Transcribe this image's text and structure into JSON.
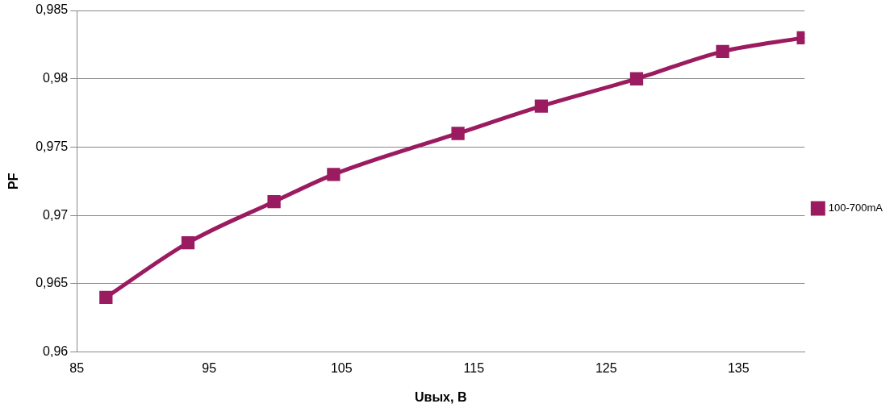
{
  "chart_data": {
    "type": "line",
    "xlabel": "Uвых, В",
    "ylabel": "PF",
    "x": [
      87.2,
      93.4,
      99.9,
      104.4,
      113.8,
      120.1,
      127.3,
      133.8,
      139.9
    ],
    "series": [
      {
        "name": "100-700mA",
        "color": "#9b1b60",
        "values": [
          0.964,
          0.968,
          0.971,
          0.973,
          0.976,
          0.978,
          0.98,
          0.982,
          0.983
        ]
      }
    ],
    "xlim": [
      85,
      140
    ],
    "xticks": [
      85,
      95,
      105,
      115,
      125,
      135
    ],
    "ylim": [
      0.96,
      0.985
    ],
    "yticks": [
      {
        "value": 0.96,
        "label": "0,96"
      },
      {
        "value": 0.965,
        "label": "0,965"
      },
      {
        "value": 0.97,
        "label": "0,97"
      },
      {
        "value": 0.975,
        "label": "0,975"
      },
      {
        "value": 0.98,
        "label": "0,98"
      },
      {
        "value": 0.985,
        "label": "0,985"
      }
    ],
    "grid": "y",
    "legend": "right",
    "marker": "square",
    "line_style": "solid"
  }
}
